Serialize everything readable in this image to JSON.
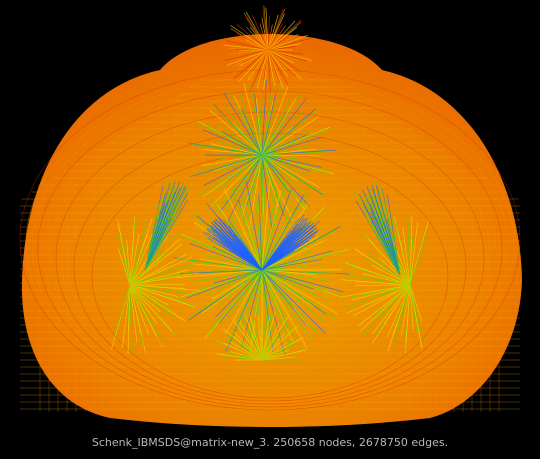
{
  "caption": "Schenk_IBMSDS@matrix-new_3. 250658 nodes, 2678750 edges.",
  "colors": {
    "background": "#000000",
    "mesh_outer": "#ff8a00",
    "mesh_inner": "#ffb000",
    "mesh_red": "#e02a00",
    "mesh_yellow": "#f0e000",
    "mesh_green": "#40e000",
    "mesh_blue": "#2060ff",
    "caption": "#b8b8b8"
  }
}
